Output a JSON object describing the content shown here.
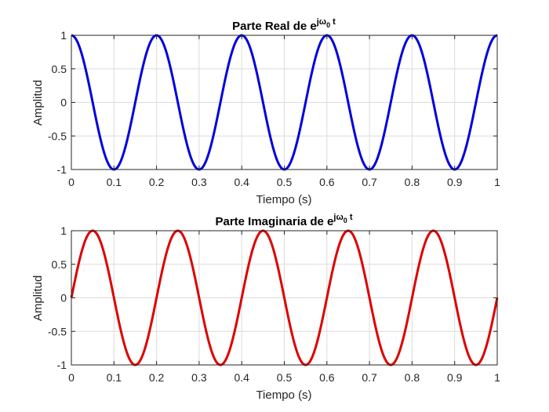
{
  "figure": {
    "background": "#ffffff"
  },
  "chart_data": [
    {
      "type": "line",
      "title": "Parte Real de e",
      "title_superscript": "jω",
      "title_subscript": "0",
      "title_superscript_tail": " t",
      "xlabel": "Tiempo (s)",
      "ylabel": "Amplitud",
      "xlim": [
        0,
        1
      ],
      "ylim": [
        -1,
        1
      ],
      "xticks": [
        "0",
        "0.1",
        "0.2",
        "0.3",
        "0.4",
        "0.5",
        "0.6",
        "0.7",
        "0.8",
        "0.9",
        "1"
      ],
      "yticks": [
        "1",
        "0.5",
        "0",
        "-0.5",
        "-1"
      ],
      "grid": true,
      "series": [
        {
          "function": "cos",
          "frequency_hz": 5,
          "amplitude": 1,
          "color": "#0000dd"
        }
      ]
    },
    {
      "type": "line",
      "title": "Parte Imaginaria de e",
      "title_superscript": "jω",
      "title_subscript": "0",
      "title_superscript_tail": " t",
      "xlabel": "Tiempo (s)",
      "ylabel": "Amplitud",
      "xlim": [
        0,
        1
      ],
      "ylim": [
        -1,
        1
      ],
      "xticks": [
        "0",
        "0.1",
        "0.2",
        "0.3",
        "0.4",
        "0.5",
        "0.6",
        "0.7",
        "0.8",
        "0.9",
        "1"
      ],
      "yticks": [
        "1",
        "0.5",
        "0",
        "-0.5",
        "-1"
      ],
      "grid": true,
      "series": [
        {
          "function": "sin",
          "frequency_hz": 5,
          "amplitude": 1,
          "color": "#dd0000"
        }
      ]
    }
  ]
}
